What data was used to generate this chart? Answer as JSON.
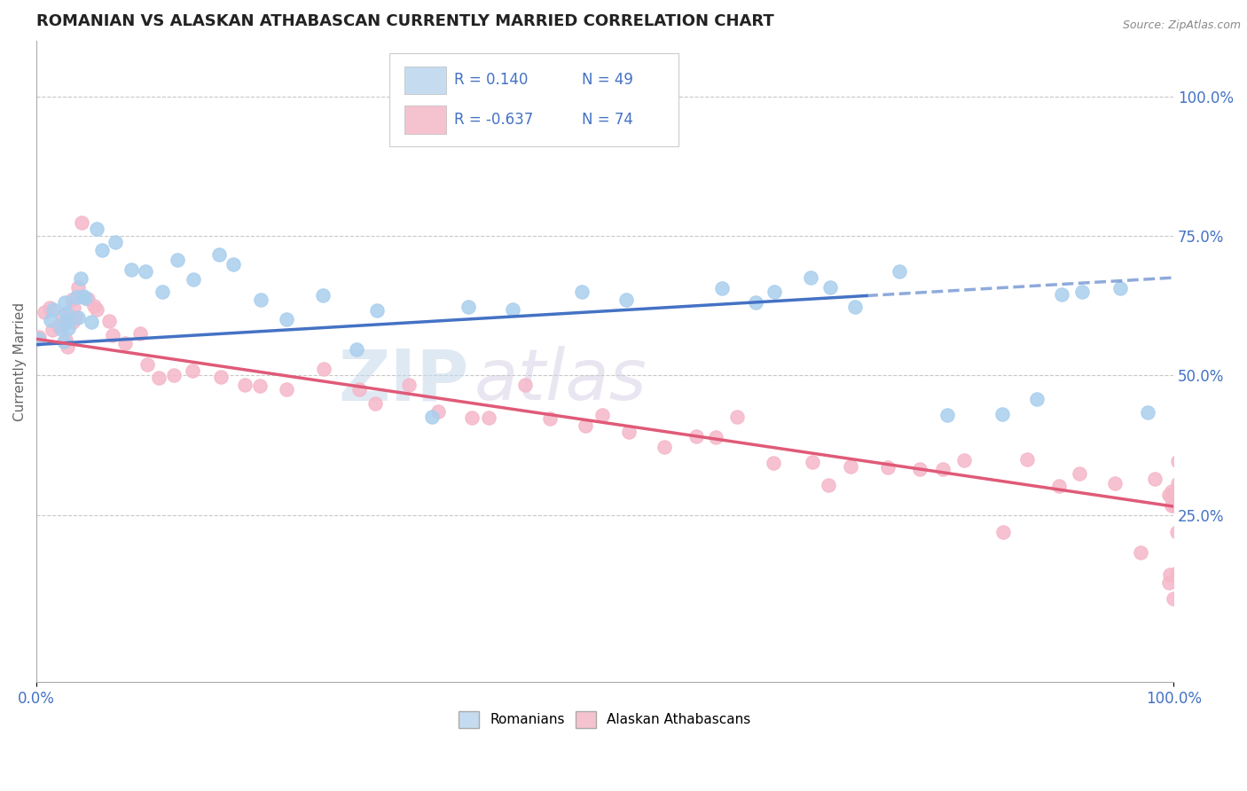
{
  "title": "ROMANIAN VS ALASKAN ATHABASCAN CURRENTLY MARRIED CORRELATION CHART",
  "source_text": "Source: ZipAtlas.com",
  "ylabel": "Currently Married",
  "right_ytick_labels": [
    "100.0%",
    "75.0%",
    "50.0%",
    "25.0%"
  ],
  "right_ytick_values": [
    1.0,
    0.75,
    0.5,
    0.25
  ],
  "xlim": [
    0.0,
    1.0
  ],
  "ylim": [
    -0.05,
    1.1
  ],
  "xtick_labels": [
    "0.0%",
    "100.0%"
  ],
  "xtick_values": [
    0.0,
    1.0
  ],
  "blue_x": [
    0.005,
    0.01,
    0.015,
    0.02,
    0.02,
    0.025,
    0.025,
    0.03,
    0.03,
    0.035,
    0.035,
    0.04,
    0.04,
    0.045,
    0.05,
    0.05,
    0.06,
    0.07,
    0.08,
    0.1,
    0.11,
    0.12,
    0.14,
    0.16,
    0.17,
    0.2,
    0.22,
    0.25,
    0.28,
    0.3,
    0.35,
    0.38,
    0.42,
    0.48,
    0.52,
    0.6,
    0.63,
    0.65,
    0.68,
    0.7,
    0.72,
    0.76,
    0.8,
    0.85,
    0.88,
    0.9,
    0.92,
    0.95,
    0.98
  ],
  "blue_y": [
    0.56,
    0.6,
    0.62,
    0.58,
    0.56,
    0.6,
    0.64,
    0.62,
    0.58,
    0.64,
    0.6,
    0.63,
    0.67,
    0.65,
    0.6,
    0.76,
    0.73,
    0.73,
    0.68,
    0.68,
    0.65,
    0.7,
    0.68,
    0.72,
    0.7,
    0.63,
    0.6,
    0.65,
    0.55,
    0.62,
    0.43,
    0.63,
    0.62,
    0.65,
    0.63,
    0.65,
    0.63,
    0.65,
    0.67,
    0.65,
    0.62,
    0.68,
    0.42,
    0.44,
    0.45,
    0.65,
    0.65,
    0.65,
    0.43
  ],
  "pink_x": [
    0.005,
    0.01,
    0.01,
    0.015,
    0.02,
    0.02,
    0.025,
    0.025,
    0.03,
    0.03,
    0.035,
    0.035,
    0.04,
    0.04,
    0.045,
    0.05,
    0.05,
    0.06,
    0.07,
    0.08,
    0.09,
    0.1,
    0.11,
    0.12,
    0.14,
    0.16,
    0.18,
    0.2,
    0.22,
    0.25,
    0.28,
    0.3,
    0.33,
    0.35,
    0.38,
    0.4,
    0.43,
    0.45,
    0.48,
    0.5,
    0.52,
    0.55,
    0.58,
    0.6,
    0.62,
    0.65,
    0.68,
    0.7,
    0.72,
    0.75,
    0.78,
    0.8,
    0.82,
    0.85,
    0.87,
    0.9,
    0.92,
    0.95,
    0.97,
    0.98,
    1.0,
    1.0,
    1.0,
    1.0,
    1.0,
    1.0,
    1.0,
    1.0,
    1.0,
    1.0,
    1.0,
    1.0,
    1.0,
    1.0
  ],
  "pink_y": [
    0.56,
    0.63,
    0.61,
    0.59,
    0.61,
    0.59,
    0.57,
    0.55,
    0.62,
    0.6,
    0.63,
    0.61,
    0.78,
    0.66,
    0.64,
    0.63,
    0.61,
    0.59,
    0.58,
    0.56,
    0.58,
    0.52,
    0.5,
    0.5,
    0.5,
    0.5,
    0.48,
    0.48,
    0.47,
    0.52,
    0.47,
    0.44,
    0.48,
    0.44,
    0.42,
    0.42,
    0.48,
    0.43,
    0.4,
    0.42,
    0.4,
    0.37,
    0.4,
    0.38,
    0.42,
    0.34,
    0.34,
    0.31,
    0.34,
    0.34,
    0.33,
    0.34,
    0.34,
    0.22,
    0.35,
    0.31,
    0.32,
    0.3,
    0.18,
    0.32,
    0.3,
    0.29,
    0.28,
    0.27,
    0.35,
    0.1,
    0.28,
    0.15,
    0.26,
    0.22,
    0.12,
    0.26,
    0.3,
    0.14
  ],
  "blue_R": "0.140",
  "blue_N": "49",
  "pink_R": "-0.637",
  "pink_N": "74",
  "blue_marker": "#aacfee",
  "pink_marker": "#f5b8c9",
  "blue_line": "#4472c4",
  "pink_line": "#e05a78",
  "legend_box_color_blue": "#c5dcf0",
  "legend_box_color_pink": "#f5c2d0",
  "legend_text_color": "#4472c4",
  "watermark_zip": "ZIP",
  "watermark_atlas": "atlas",
  "watermark_color_zip": "#c5d8ea",
  "watermark_color_atlas": "#d0c8e0",
  "background_color": "#ffffff",
  "grid_color": "#c8c8c8",
  "title_color": "#222222",
  "right_axis_color": "#4472c4",
  "xtick_color": "#4472c4"
}
